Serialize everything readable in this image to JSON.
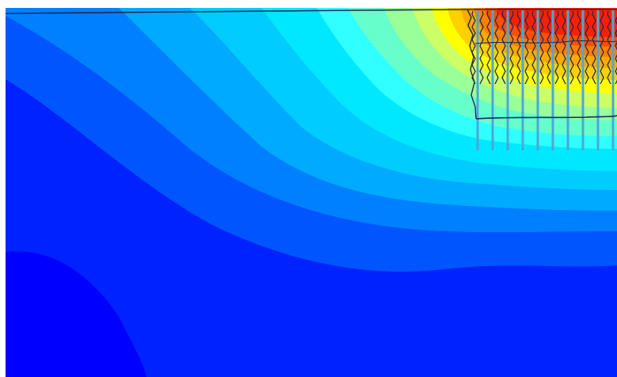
{
  "figure": {
    "kind": "filled-contour-plot",
    "colormap": "jet",
    "colors": {
      "level_0": "#0000ff",
      "level_1": "#0022ff",
      "level_2": "#0055ff",
      "level_3": "#0080ff",
      "level_4": "#00aaff",
      "level_5": "#00ccff",
      "level_6": "#00e8ff",
      "level_7": "#2fffff",
      "level_8": "#66ffcc",
      "level_9": "#99ff99",
      "level_10": "#ccff66",
      "level_11": "#ffff00",
      "level_12": "#ffd000",
      "level_13": "#ffaa00",
      "level_14": "#ff7f00",
      "level_15": "#ff4f00",
      "level_16": "#ff1f00",
      "outline": "#1a2a5a",
      "rods": "#4aa8d8",
      "frame": "#eeeeee"
    },
    "rod_count": 10,
    "text_labels": []
  }
}
